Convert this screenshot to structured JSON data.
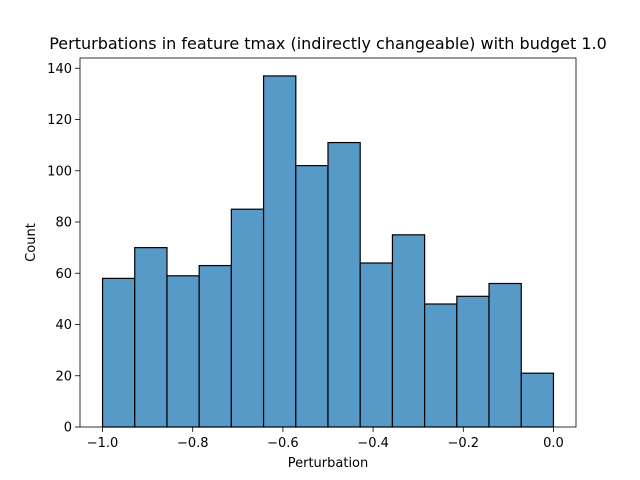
{
  "chart_data": {
    "type": "bar",
    "title": "Perturbations in feature tmax (indirectly changeable) with budget 1.0",
    "xlabel": "Perturbation",
    "ylabel": "Count",
    "bin_edges": [
      -1.0,
      -0.9286,
      -0.8571,
      -0.7857,
      -0.7143,
      -0.6429,
      -0.5714,
      -0.5,
      -0.4286,
      -0.3571,
      -0.2857,
      -0.2143,
      -0.1429,
      -0.0714,
      0.0
    ],
    "values": [
      58,
      70,
      59,
      63,
      85,
      137,
      102,
      111,
      64,
      75,
      48,
      51,
      56,
      21
    ],
    "xlim": [
      -1.05,
      0.05
    ],
    "ylim": [
      0,
      144
    ],
    "x_ticks": [
      -1.0,
      -0.8,
      -0.6,
      -0.4,
      -0.2,
      0.0
    ],
    "x_tick_labels": [
      "−1.0",
      "−0.8",
      "−0.6",
      "−0.4",
      "−0.2",
      "0.0"
    ],
    "y_ticks": [
      0,
      20,
      40,
      60,
      80,
      100,
      120,
      140
    ],
    "y_tick_labels": [
      "0",
      "20",
      "40",
      "60",
      "80",
      "100",
      "120",
      "140"
    ],
    "bar_color": "#5799c7",
    "edge_color": "#000000",
    "grid": false,
    "legend": "none"
  }
}
